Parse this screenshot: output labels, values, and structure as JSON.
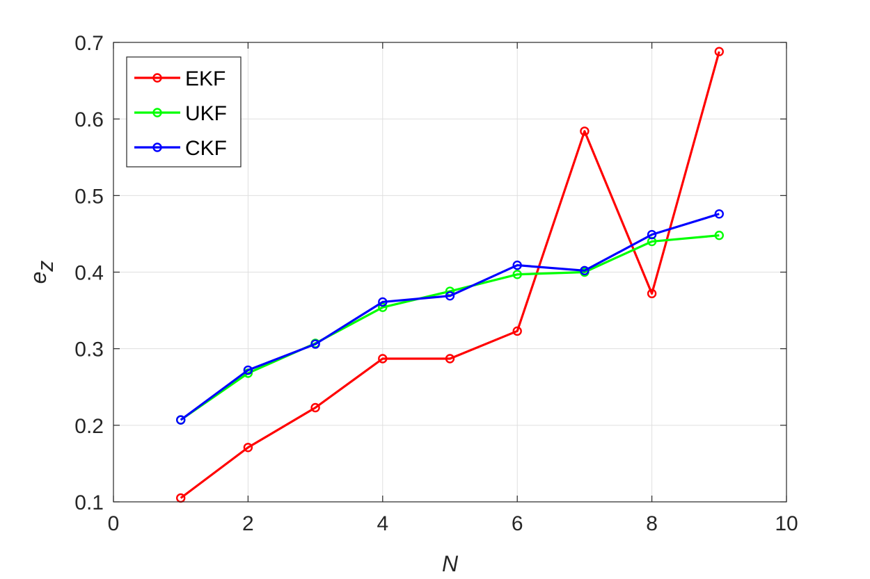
{
  "chart_data": {
    "type": "line",
    "xlabel": "N",
    "ylabel_main": "e",
    "ylabel_sub": "z",
    "xlim": [
      0,
      10
    ],
    "ylim": [
      0.1,
      0.7
    ],
    "xticks": [
      0,
      2,
      4,
      6,
      8,
      10
    ],
    "xtick_labels": [
      "0",
      "2",
      "4",
      "6",
      "8",
      "10"
    ],
    "yticks": [
      0.1,
      0.2,
      0.3,
      0.4,
      0.5,
      0.6,
      0.7
    ],
    "ytick_labels": [
      "0.1",
      "0.2",
      "0.3",
      "0.4",
      "0.5",
      "0.6",
      "0.7"
    ],
    "grid": true,
    "legend_position": "top-left",
    "x": [
      1,
      2,
      3,
      4,
      5,
      6,
      7,
      8,
      9
    ],
    "series": [
      {
        "name": "EKF",
        "color": "#ff0000",
        "values": [
          0.105,
          0.171,
          0.223,
          0.287,
          0.287,
          0.323,
          0.584,
          0.372,
          0.688
        ]
      },
      {
        "name": "UKF",
        "color": "#00ff00",
        "values": [
          0.207,
          0.268,
          0.307,
          0.354,
          0.375,
          0.397,
          0.4,
          0.44,
          0.448
        ]
      },
      {
        "name": "CKF",
        "color": "#0000ff",
        "values": [
          0.207,
          0.272,
          0.306,
          0.361,
          0.369,
          0.409,
          0.402,
          0.449,
          0.476
        ]
      }
    ]
  }
}
